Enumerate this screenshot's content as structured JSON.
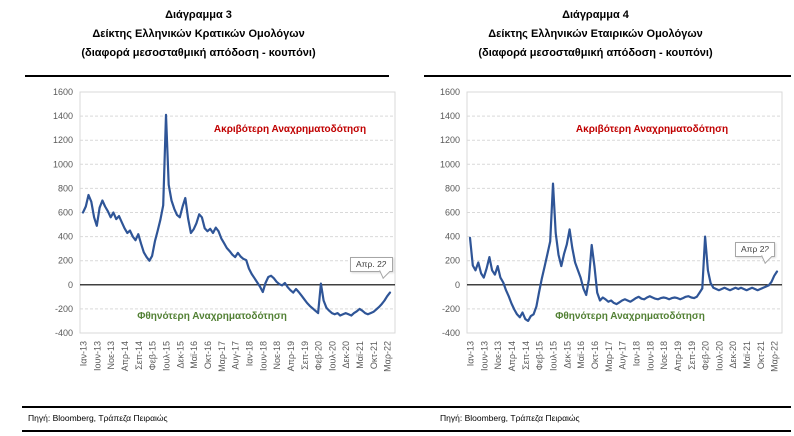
{
  "page": {
    "source_left": "Πηγή: Bloomberg, Τράπεζα Πειραιώς",
    "source_right": "Πηγή: Bloomberg, Τράπεζα Πειραιώς"
  },
  "colors": {
    "line": "#2F5597",
    "annotation_red": "#C00000",
    "annotation_green": "#538135",
    "grid": "#D9D9D9",
    "axis_text": "#595959",
    "zero_line": "#000000"
  },
  "chart_data": [
    {
      "type": "line",
      "title_line1": "Διάγραμμα 3",
      "title_line2": "Δείκτης Ελληνικών Κρατικών Ομολόγων",
      "title_line3": "(διαφορά μεσοσταθμική απόδοση - κουπόνι)",
      "annotation_top": "Ακριβότερη Αναχρηματοδότηση",
      "annotation_bottom": "Φθηνότερη Αναχρηματοδότηση",
      "callout_label": "Απρ. 22",
      "ylim": [
        -400,
        1600
      ],
      "y_ticks": [
        1600,
        1400,
        1200,
        1000,
        800,
        600,
        400,
        200,
        0,
        -200,
        -400
      ],
      "grid": "dashed",
      "x_tick_labels": [
        "Ιαν-13",
        "Ιουν-13",
        "Νοε-13",
        "Απρ-14",
        "Σεπ-14",
        "Φεβ-15",
        "Ιουλ-15",
        "Δεκ-15",
        "Μαϊ-16",
        "Οκτ-16",
        "Μαρ-17",
        "Αυγ-17",
        "Ιαν-18",
        "Ιουν-18",
        "Νοε-18",
        "Απρ-19",
        "Σεπ-19",
        "Φεβ-20",
        "Ιουλ-20",
        "Δεκ-20",
        "Μαϊ-21",
        "Οκτ-21",
        "Μαρ-22"
      ],
      "points_per_tick": 5,
      "x_period": "monthly Ιαν-13 έως Απρ-22",
      "series": [
        {
          "name": "Δείκτης Ελληνικών Κρατικών Ομολόγων",
          "values": [
            600,
            650,
            745,
            690,
            560,
            490,
            640,
            700,
            650,
            610,
            560,
            600,
            545,
            570,
            520,
            470,
            430,
            450,
            400,
            370,
            420,
            340,
            270,
            230,
            200,
            240,
            360,
            450,
            540,
            660,
            1410,
            830,
            700,
            630,
            580,
            560,
            650,
            720,
            550,
            430,
            460,
            510,
            585,
            560,
            470,
            445,
            465,
            430,
            475,
            445,
            385,
            345,
            305,
            280,
            250,
            230,
            265,
            235,
            215,
            205,
            135,
            90,
            55,
            20,
            -15,
            -60,
            15,
            65,
            75,
            55,
            25,
            5,
            -5,
            15,
            -20,
            -45,
            -65,
            -35,
            -60,
            -90,
            -120,
            -150,
            -175,
            -195,
            -215,
            -235,
            10,
            -130,
            -190,
            -215,
            -235,
            -245,
            -235,
            -255,
            -245,
            -235,
            -245,
            -255,
            -235,
            -220,
            -200,
            -215,
            -235,
            -245,
            -235,
            -225,
            -205,
            -185,
            -160,
            -130,
            -95,
            -65
          ]
        }
      ]
    },
    {
      "type": "line",
      "title_line1": "Διάγραμμα 4",
      "title_line2": "Δείκτης Ελληνικών Εταιρικών Ομολόγων",
      "title_line3": "(διαφορά μεσοσταθμική απόδοση - κουπόνι)",
      "annotation_top": "Ακριβότερη Αναχρηματοδότηση",
      "annotation_bottom": "Φθηνότερη Αναχρηματοδότηση",
      "callout_label": "Απρ 22",
      "ylim": [
        -400,
        1600
      ],
      "y_ticks": [
        1600,
        1400,
        1200,
        1000,
        800,
        600,
        400,
        200,
        0,
        -200,
        -400
      ],
      "grid": "dashed",
      "x_tick_labels": [
        "Ιαν-13",
        "Ιουν-13",
        "Νοε-13",
        "Απρ-14",
        "Σεπ-14",
        "Φεβ-15",
        "Ιουλ-15",
        "Δεκ-15",
        "Μαϊ-16",
        "Οκτ-16",
        "Μαρ-17",
        "Αυγ-17",
        "Ιαν-18",
        "Ιουν-18",
        "Νοε-18",
        "Απρ-19",
        "Σεπ-19",
        "Φεβ-20",
        "Ιουλ-20",
        "Δεκ-20",
        "Μαϊ-21",
        "Οκτ-21",
        "Μαρ-22"
      ],
      "points_per_tick": 5,
      "x_period": "monthly Ιαν-13 έως Απρ-22",
      "series": [
        {
          "name": "Δείκτης Ελληνικών Εταιρικών Ομολόγων",
          "values": [
            390,
            160,
            120,
            185,
            95,
            60,
            135,
            230,
            120,
            85,
            155,
            60,
            20,
            -45,
            -95,
            -155,
            -205,
            -245,
            -270,
            -230,
            -285,
            -300,
            -260,
            -245,
            -180,
            -60,
            55,
            155,
            255,
            360,
            840,
            430,
            250,
            155,
            255,
            335,
            460,
            305,
            185,
            120,
            60,
            -30,
            -85,
            45,
            330,
            150,
            -65,
            -130,
            -105,
            -120,
            -140,
            -130,
            -150,
            -160,
            -145,
            -130,
            -120,
            -130,
            -140,
            -125,
            -110,
            -100,
            -115,
            -120,
            -105,
            -95,
            -105,
            -115,
            -120,
            -110,
            -105,
            -110,
            -120,
            -110,
            -105,
            -110,
            -120,
            -110,
            -100,
            -95,
            -105,
            -110,
            -100,
            -65,
            -30,
            400,
            120,
            15,
            -25,
            -35,
            -45,
            -35,
            -25,
            -35,
            -45,
            -35,
            -25,
            -35,
            -25,
            -35,
            -45,
            -35,
            -25,
            -35,
            -45,
            -35,
            -25,
            -15,
            -5,
            25,
            75,
            110
          ]
        }
      ]
    }
  ]
}
